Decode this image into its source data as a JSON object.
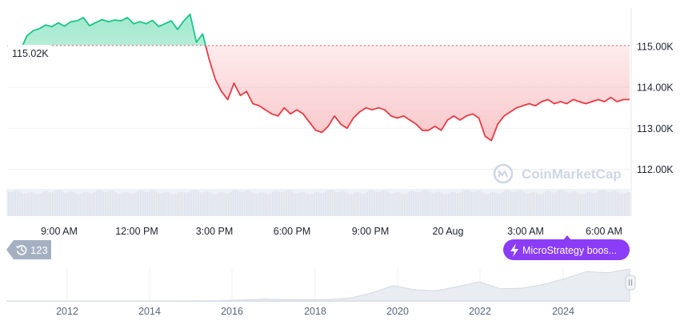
{
  "chart_data": {
    "type": "area",
    "baseline_value": 115020,
    "baseline_label": "115.02K",
    "colors": {
      "up": "#16c784",
      "down": "#ea3943",
      "accent": "#8b3cf7",
      "grid": "#eff2f5",
      "text": "#58667e"
    },
    "y_axis": {
      "min": 111600,
      "max": 116050,
      "ticks": [
        115000,
        114000,
        113000,
        112000
      ],
      "tick_labels": [
        "115.00K",
        "114.00K",
        "113.00K",
        "112.00K"
      ]
    },
    "x_axis": {
      "tick_labels": [
        "9:00 AM",
        "12:00 PM",
        "3:00 PM",
        "6:00 PM",
        "9:00 PM",
        "20 Aug",
        "3:00 AM",
        "6:00 AM"
      ]
    },
    "series": [
      {
        "x": "07:00",
        "y": 115020
      },
      {
        "x": "07:15",
        "y": 114830
      },
      {
        "x": "07:30",
        "y": 114900
      },
      {
        "x": "07:45",
        "y": 115250
      },
      {
        "x": "08:00",
        "y": 115380
      },
      {
        "x": "08:15",
        "y": 115430
      },
      {
        "x": "08:30",
        "y": 115520
      },
      {
        "x": "08:45",
        "y": 115480
      },
      {
        "x": "09:00",
        "y": 115570
      },
      {
        "x": "09:15",
        "y": 115490
      },
      {
        "x": "09:30",
        "y": 115600
      },
      {
        "x": "09:45",
        "y": 115620
      },
      {
        "x": "10:00",
        "y": 115700
      },
      {
        "x": "10:15",
        "y": 115500
      },
      {
        "x": "10:30",
        "y": 115580
      },
      {
        "x": "10:45",
        "y": 115650
      },
      {
        "x": "11:00",
        "y": 115600
      },
      {
        "x": "11:15",
        "y": 115640
      },
      {
        "x": "11:30",
        "y": 115620
      },
      {
        "x": "11:45",
        "y": 115700
      },
      {
        "x": "12:00",
        "y": 115550
      },
      {
        "x": "12:15",
        "y": 115600
      },
      {
        "x": "12:30",
        "y": 115550
      },
      {
        "x": "12:45",
        "y": 115630
      },
      {
        "x": "13:00",
        "y": 115480
      },
      {
        "x": "13:15",
        "y": 115550
      },
      {
        "x": "13:30",
        "y": 115620
      },
      {
        "x": "13:45",
        "y": 115410
      },
      {
        "x": "14:00",
        "y": 115620
      },
      {
        "x": "14:15",
        "y": 115780
      },
      {
        "x": "14:30",
        "y": 115100
      },
      {
        "x": "14:45",
        "y": 115300
      },
      {
        "x": "15:00",
        "y": 114700
      },
      {
        "x": "15:15",
        "y": 114200
      },
      {
        "x": "15:30",
        "y": 113900
      },
      {
        "x": "15:45",
        "y": 113700
      },
      {
        "x": "16:00",
        "y": 114100
      },
      {
        "x": "16:15",
        "y": 113800
      },
      {
        "x": "16:30",
        "y": 113900
      },
      {
        "x": "16:45",
        "y": 113600
      },
      {
        "x": "17:00",
        "y": 113550
      },
      {
        "x": "17:15",
        "y": 113450
      },
      {
        "x": "17:30",
        "y": 113350
      },
      {
        "x": "17:45",
        "y": 113300
      },
      {
        "x": "18:00",
        "y": 113500
      },
      {
        "x": "18:15",
        "y": 113350
      },
      {
        "x": "18:30",
        "y": 113450
      },
      {
        "x": "18:45",
        "y": 113350
      },
      {
        "x": "19:00",
        "y": 113150
      },
      {
        "x": "19:15",
        "y": 112950
      },
      {
        "x": "19:30",
        "y": 112900
      },
      {
        "x": "19:45",
        "y": 113050
      },
      {
        "x": "20:00",
        "y": 113300
      },
      {
        "x": "20:15",
        "y": 113100
      },
      {
        "x": "20:30",
        "y": 113000
      },
      {
        "x": "20:45",
        "y": 113250
      },
      {
        "x": "21:00",
        "y": 113400
      },
      {
        "x": "21:15",
        "y": 113500
      },
      {
        "x": "21:30",
        "y": 113450
      },
      {
        "x": "21:45",
        "y": 113500
      },
      {
        "x": "22:00",
        "y": 113450
      },
      {
        "x": "22:15",
        "y": 113300
      },
      {
        "x": "22:30",
        "y": 113250
      },
      {
        "x": "22:45",
        "y": 113300
      },
      {
        "x": "23:00",
        "y": 113200
      },
      {
        "x": "23:15",
        "y": 113100
      },
      {
        "x": "23:30",
        "y": 112950
      },
      {
        "x": "23:45",
        "y": 112950
      },
      {
        "x": "00:00",
        "y": 113050
      },
      {
        "x": "00:15",
        "y": 112950
      },
      {
        "x": "00:30",
        "y": 113200
      },
      {
        "x": "00:45",
        "y": 113300
      },
      {
        "x": "01:00",
        "y": 113200
      },
      {
        "x": "01:15",
        "y": 113300
      },
      {
        "x": "01:30",
        "y": 113350
      },
      {
        "x": "01:45",
        "y": 113250
      },
      {
        "x": "02:00",
        "y": 112800
      },
      {
        "x": "02:15",
        "y": 112700
      },
      {
        "x": "02:30",
        "y": 113100
      },
      {
        "x": "02:45",
        "y": 113300
      },
      {
        "x": "03:00",
        "y": 113400
      },
      {
        "x": "03:15",
        "y": 113500
      },
      {
        "x": "03:30",
        "y": 113550
      },
      {
        "x": "03:45",
        "y": 113600
      },
      {
        "x": "04:00",
        "y": 113550
      },
      {
        "x": "04:15",
        "y": 113650
      },
      {
        "x": "04:30",
        "y": 113700
      },
      {
        "x": "04:45",
        "y": 113600
      },
      {
        "x": "05:00",
        "y": 113650
      },
      {
        "x": "05:15",
        "y": 113600
      },
      {
        "x": "05:30",
        "y": 113700
      },
      {
        "x": "05:45",
        "y": 113650
      },
      {
        "x": "06:00",
        "y": 113600
      },
      {
        "x": "06:15",
        "y": 113650
      },
      {
        "x": "06:30",
        "y": 113700
      },
      {
        "x": "06:45",
        "y": 113650
      },
      {
        "x": "07:00",
        "y": 113750
      },
      {
        "x": "07:15",
        "y": 113650
      },
      {
        "x": "07:30",
        "y": 113700
      },
      {
        "x": "07:45",
        "y": 113700
      }
    ],
    "navigator": {
      "tick_labels": [
        "2012",
        "2014",
        "2016",
        "2018",
        "2020",
        "2022",
        "2024"
      ],
      "history_badge": {
        "icon": "history-icon",
        "label": "123"
      },
      "news_badge": {
        "icon": "lightning-icon",
        "label": "MicroStrategy boos..."
      },
      "handle_icon": "pause-handle-icon",
      "history": [
        0,
        0,
        0,
        0,
        0,
        0,
        0.2,
        0.3,
        0.2,
        0.5,
        1,
        3,
        6,
        4,
        3.5,
        4.5,
        9,
        25,
        48,
        35,
        32,
        45,
        60,
        38,
        40,
        52,
        70,
        92,
        88,
        100
      ]
    },
    "watermark": {
      "icon": "coinmarketcap-logo-icon",
      "text": "CoinMarketCap"
    }
  }
}
